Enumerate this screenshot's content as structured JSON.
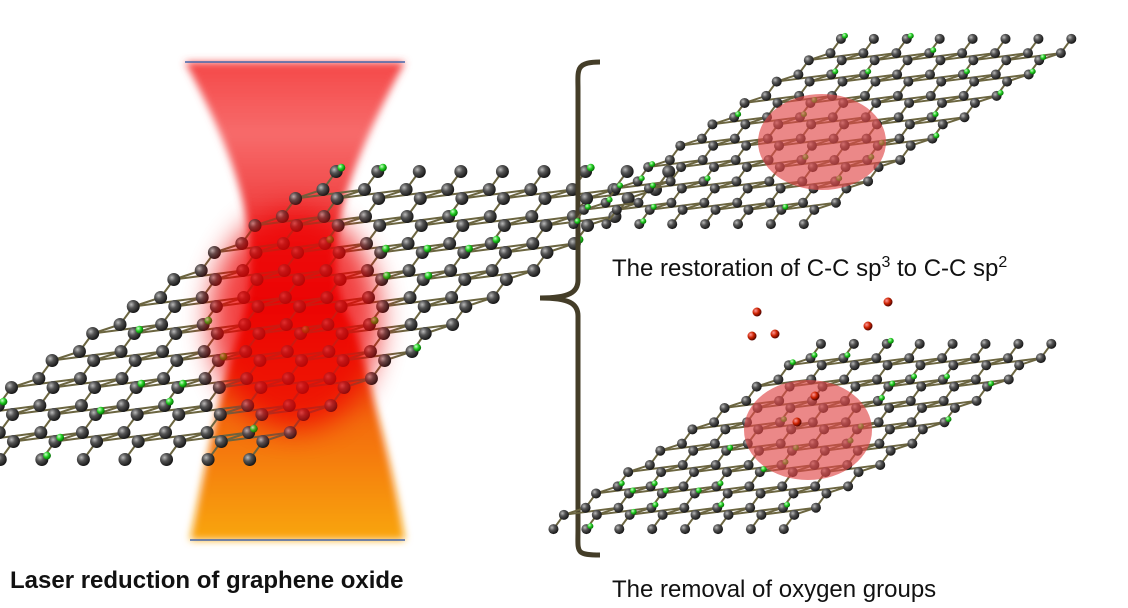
{
  "left_caption": "Laser reduction of graphene oxide",
  "panels": [
    {
      "caption_parts": [
        "The restoration of C-C sp",
        "3",
        " to C-C sp",
        "2"
      ]
    },
    {
      "caption": "The removal of oxygen groups"
    }
  ]
}
